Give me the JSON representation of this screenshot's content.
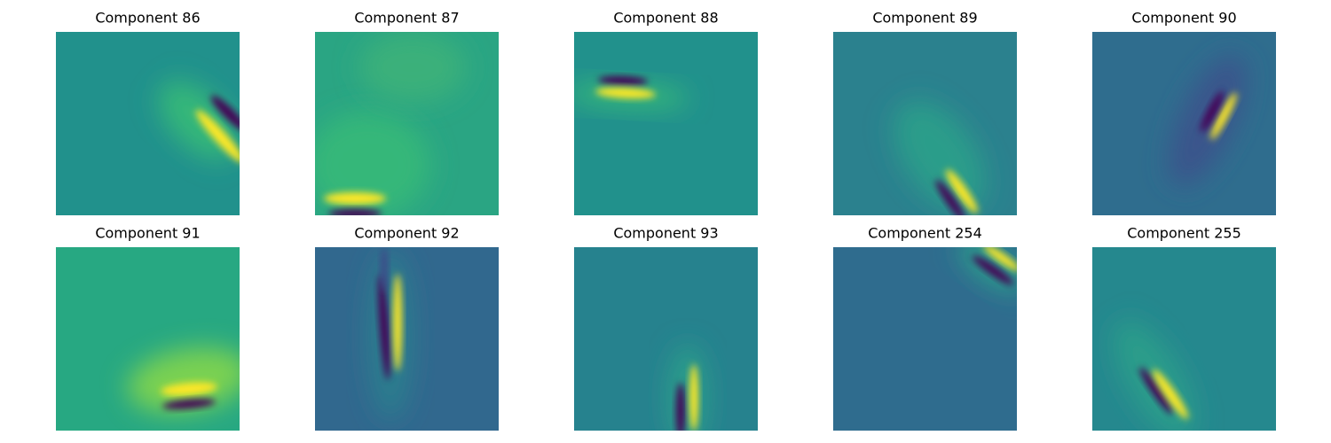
{
  "panels": [
    {
      "title": "Component 86"
    },
    {
      "title": "Component 87"
    },
    {
      "title": "Component 88"
    },
    {
      "title": "Component 89"
    },
    {
      "title": "Component 90"
    },
    {
      "title": "Component 91"
    },
    {
      "title": "Component 92"
    },
    {
      "title": "Component 93"
    },
    {
      "title": "Component 254"
    },
    {
      "title": "Component 255"
    }
  ]
}
